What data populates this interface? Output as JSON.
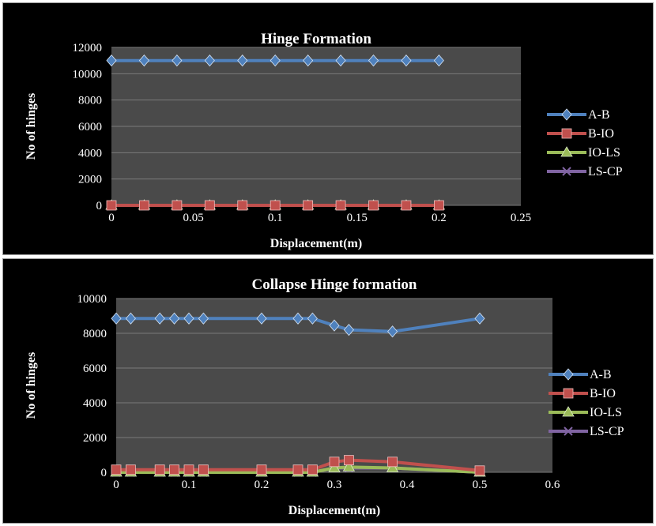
{
  "colors": {
    "A-B": "#4f81bd",
    "B-IO": "#c0504d",
    "IO-LS": "#9bbb59",
    "LS-CP": "#8064a2",
    "plot_bg": "#4a4a4a",
    "grid": "#7a7a7a"
  },
  "chart_data": [
    {
      "type": "line",
      "title": "Hinge Formation",
      "xlabel": "Displacement(m)",
      "ylabel": "No of hinges",
      "xlim": [
        0,
        0.25
      ],
      "ylim": [
        0,
        12000
      ],
      "xticks": [
        0,
        0.05,
        0.1,
        0.15,
        0.2,
        0.25
      ],
      "xtick_labels": [
        "0",
        "0.05",
        "0.1",
        "0.15",
        "0.2",
        "0.25"
      ],
      "yticks": [
        0,
        2000,
        4000,
        6000,
        8000,
        10000,
        12000
      ],
      "ytick_labels": [
        "0",
        "2000",
        "4000",
        "6000",
        "8000",
        "10000",
        "12000"
      ],
      "grid": true,
      "legend": "right",
      "x": [
        0,
        0.02,
        0.04,
        0.06,
        0.08,
        0.1,
        0.12,
        0.14,
        0.16,
        0.18,
        0.2
      ],
      "series": [
        {
          "name": "A-B",
          "marker": "diamond",
          "values": [
            11000,
            11000,
            11000,
            11000,
            11000,
            11000,
            11000,
            11000,
            11000,
            11000,
            11000
          ]
        },
        {
          "name": "B-IO",
          "marker": "square",
          "values": [
            0,
            0,
            0,
            0,
            0,
            0,
            0,
            0,
            0,
            0,
            0
          ]
        },
        {
          "name": "IO-LS",
          "marker": "triangle",
          "values": [
            0,
            0,
            0,
            0,
            0,
            0,
            0,
            0,
            0,
            0,
            0
          ]
        },
        {
          "name": "LS-CP",
          "marker": "x",
          "values": [
            0,
            0,
            0,
            0,
            0,
            0,
            0,
            0,
            0,
            0,
            0
          ]
        }
      ]
    },
    {
      "type": "line",
      "title": "Collapse Hinge formation",
      "xlabel": "Displacement(m)",
      "ylabel": "No of hinges",
      "xlim": [
        0,
        0.6
      ],
      "ylim": [
        0,
        10000
      ],
      "xticks": [
        0,
        0.1,
        0.2,
        0.3,
        0.4,
        0.5,
        0.6
      ],
      "xtick_labels": [
        "0",
        "0.1",
        "0.2",
        "0.3",
        "0.4",
        "0.5",
        "0.6"
      ],
      "yticks": [
        0,
        2000,
        4000,
        6000,
        8000,
        10000
      ],
      "ytick_labels": [
        "0",
        "2000",
        "4000",
        "6000",
        "8000",
        "10000"
      ],
      "grid": true,
      "legend": "right",
      "x": [
        0,
        0.02,
        0.06,
        0.08,
        0.1,
        0.12,
        0.2,
        0.25,
        0.27,
        0.3,
        0.32,
        0.38,
        0.5
      ],
      "series": [
        {
          "name": "A-B",
          "marker": "diamond",
          "values": [
            8850,
            8850,
            8850,
            8850,
            8850,
            8850,
            8850,
            8850,
            8850,
            8450,
            8200,
            8100,
            8850
          ]
        },
        {
          "name": "B-IO",
          "marker": "square",
          "values": [
            150,
            150,
            150,
            150,
            150,
            150,
            150,
            150,
            150,
            600,
            700,
            600,
            100
          ]
        },
        {
          "name": "IO-LS",
          "marker": "triangle",
          "values": [
            0,
            0,
            0,
            0,
            0,
            0,
            0,
            0,
            0,
            250,
            300,
            250,
            0
          ]
        },
        {
          "name": "LS-CP",
          "marker": "x",
          "values": [
            0,
            0,
            0,
            0,
            0,
            0,
            0,
            0,
            0,
            250,
            250,
            250,
            0
          ]
        }
      ]
    }
  ]
}
